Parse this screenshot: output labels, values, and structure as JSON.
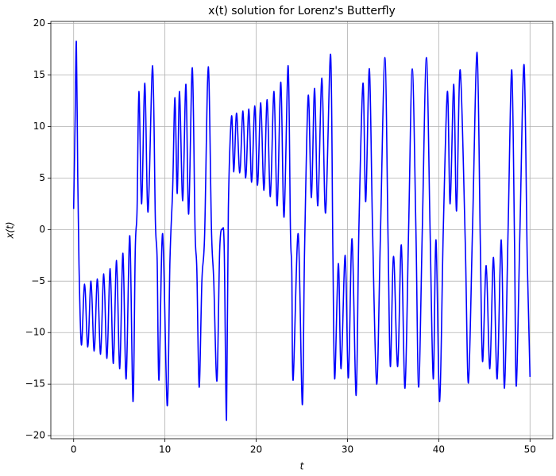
{
  "chart_data": {
    "type": "line",
    "title": "x(t) solution for Lorenz's Butterfly",
    "x_label": "t",
    "y_label": "x(t)",
    "color": "#0000ff",
    "grid": true,
    "xlim": [
      -2.5,
      52.5
    ],
    "ylim": [
      -20.3,
      20.2
    ],
    "xticks": [
      0,
      10,
      20,
      30,
      40,
      50
    ],
    "yticks": [
      {
        "value": -20,
        "label": "−20"
      },
      {
        "value": -15,
        "label": "−15"
      },
      {
        "value": -10,
        "label": "−10"
      },
      {
        "value": -5,
        "label": "−5"
      },
      0,
      5,
      10,
      15,
      20
    ],
    "x": [
      0,
      0.15,
      0.3,
      0.45,
      0.6,
      0.85,
      1.2,
      1.55,
      1.9,
      2.25,
      2.6,
      2.95,
      3.3,
      3.65,
      4.0,
      4.35,
      4.7,
      5.05,
      5.4,
      5.75,
      6.15,
      6.5,
      6.75,
      6.95,
      7.15,
      7.45,
      7.8,
      8.15,
      8.65,
      8.95,
      9.15,
      9.35,
      9.75,
      10.25,
      10.55,
      10.85,
      11.1,
      11.35,
      11.6,
      11.95,
      12.3,
      12.6,
      13.0,
      13.3,
      13.5,
      13.75,
      14.05,
      14.35,
      14.75,
      15.1,
      15.35,
      15.7,
      16.0,
      16.3,
      16.5,
      16.75,
      16.95,
      17.3,
      17.55,
      17.85,
      18.2,
      18.55,
      18.85,
      19.2,
      19.5,
      19.85,
      20.15,
      20.5,
      20.85,
      21.2,
      21.55,
      21.95,
      22.3,
      22.7,
      23.05,
      23.5,
      23.75,
      23.9,
      24.05,
      24.6,
      25.05,
      25.3,
      25.7,
      26.05,
      26.4,
      26.75,
      27.2,
      27.6,
      28.15,
      28.4,
      28.6,
      29.0,
      29.3,
      29.75,
      30.1,
      30.5,
      30.95,
      31.25,
      31.7,
      32.0,
      32.4,
      32.75,
      33.2,
      33.6,
      34.1,
      34.45,
      34.7,
      35.05,
      35.5,
      35.9,
      36.3,
      36.7,
      37.1,
      37.5,
      37.8,
      38.2,
      38.65,
      39.05,
      39.4,
      39.7,
      40.1,
      40.5,
      40.95,
      41.25,
      41.65,
      41.95,
      42.35,
      42.9,
      43.25,
      43.7,
      44.2,
      44.55,
      44.8,
      45.2,
      45.6,
      46.0,
      46.4,
      46.85,
      47.2,
      47.6,
      48.0,
      48.3,
      48.5,
      48.9,
      49.35,
      49.7,
      50
    ],
    "values": [
      2,
      10,
      18.2,
      5,
      -4,
      -11.2,
      -5.3,
      -11.4,
      -5.0,
      -11.8,
      -4.8,
      -12.1,
      -4.3,
      -12.5,
      -3.8,
      -13.0,
      -3.0,
      -13.5,
      -2.3,
      -14.5,
      -0.6,
      -16.7,
      -2,
      2,
      13.4,
      2.5,
      14.2,
      1.7,
      15.9,
      1,
      -3,
      -14.6,
      -0.4,
      -17.1,
      -3,
      4,
      12.8,
      3.5,
      13.4,
      2.8,
      14.1,
      1.5,
      15.7,
      0,
      -4,
      -15.3,
      -5,
      -0.5,
      15.8,
      0,
      -5,
      -14.7,
      -2,
      0,
      -2,
      -18.5,
      2,
      11.0,
      5.6,
      11.3,
      5.5,
      11.5,
      5.0,
      11.7,
      4.6,
      12.0,
      4.3,
      12.3,
      3.8,
      12.6,
      3.2,
      13.4,
      2.3,
      14.3,
      1.2,
      15.9,
      0,
      -4,
      -14.6,
      -0.4,
      -17.0,
      -2,
      13.0,
      3.1,
      13.7,
      2.3,
      14.7,
      1.6,
      17.0,
      -2,
      -14.5,
      -3.3,
      -13.5,
      -2.5,
      -14.4,
      -0.9,
      -16.1,
      0,
      14.2,
      2.7,
      15.6,
      0,
      -15.0,
      -1,
      16.7,
      -1,
      -13.3,
      -2.6,
      -13.3,
      -1.5,
      -15.4,
      0,
      15.6,
      0,
      -15.3,
      0,
      16.7,
      0,
      -14.5,
      -1,
      -16.7,
      0,
      13.4,
      2.5,
      14.1,
      1.8,
      15.5,
      -1,
      -14.9,
      0,
      17.2,
      -1,
      -12.8,
      -3.5,
      -13.5,
      -2.7,
      -14.5,
      -1.0,
      -15.4,
      0,
      15.5,
      -1,
      -15.2,
      0,
      16.0,
      -3,
      -14.3
    ]
  }
}
